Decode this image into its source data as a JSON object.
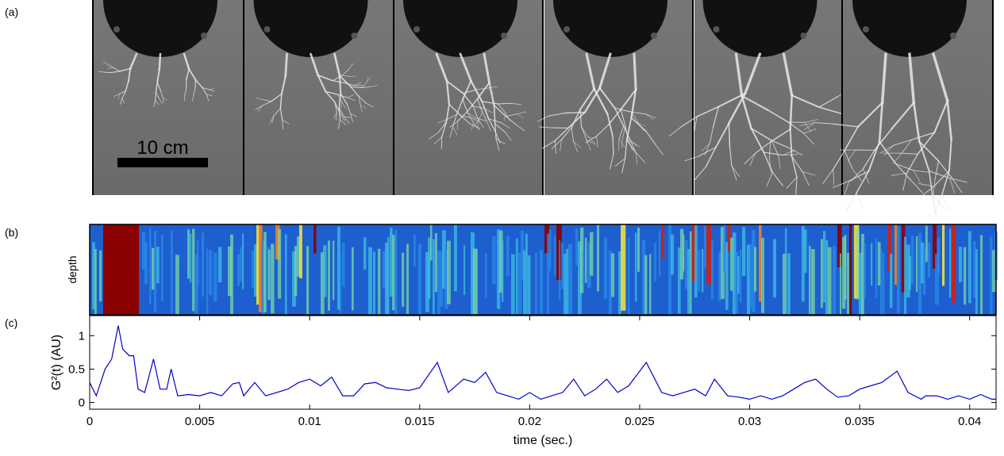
{
  "panel_labels": [
    "(a)",
    "(b)",
    "(c)"
  ],
  "scale_bar": "10 cm",
  "depth_label": "depth",
  "chart_data": {
    "type": "line",
    "xlabel": "time (sec.)",
    "ylabel": "G²(t) (AU)",
    "color": "#0000cc",
    "x": [
      0,
      0.0003,
      0.0007,
      0.001,
      0.0013,
      0.0015,
      0.0018,
      0.002,
      0.0022,
      0.0025,
      0.0029,
      0.0032,
      0.0035,
      0.0037,
      0.004,
      0.0045,
      0.005,
      0.0055,
      0.006,
      0.0065,
      0.0068,
      0.007,
      0.0075,
      0.008,
      0.0085,
      0.009,
      0.0095,
      0.01,
      0.0105,
      0.011,
      0.0115,
      0.012,
      0.0125,
      0.013,
      0.0135,
      0.014,
      0.0145,
      0.015,
      0.0158,
      0.0163,
      0.017,
      0.0175,
      0.018,
      0.0185,
      0.019,
      0.0195,
      0.02,
      0.0205,
      0.021,
      0.0215,
      0.022,
      0.0225,
      0.023,
      0.0235,
      0.024,
      0.0245,
      0.0253,
      0.026,
      0.0265,
      0.027,
      0.0275,
      0.028,
      0.0284,
      0.029,
      0.0295,
      0.03,
      0.0305,
      0.031,
      0.0315,
      0.032,
      0.0325,
      0.033,
      0.0335,
      0.034,
      0.0345,
      0.035,
      0.0355,
      0.036,
      0.0367,
      0.0372,
      0.0378,
      0.038,
      0.0385,
      0.039,
      0.0395,
      0.04,
      0.0405,
      0.041,
      0.0412
    ],
    "values": [
      0.3,
      0.1,
      0.5,
      0.65,
      1.15,
      0.8,
      0.7,
      0.7,
      0.2,
      0.15,
      0.65,
      0.2,
      0.2,
      0.5,
      0.1,
      0.12,
      0.1,
      0.15,
      0.1,
      0.28,
      0.3,
      0.1,
      0.3,
      0.1,
      0.15,
      0.2,
      0.3,
      0.35,
      0.25,
      0.38,
      0.1,
      0.1,
      0.28,
      0.3,
      0.22,
      0.2,
      0.18,
      0.22,
      0.6,
      0.15,
      0.35,
      0.3,
      0.45,
      0.15,
      0.1,
      0.05,
      0.15,
      0.05,
      0.1,
      0.15,
      0.35,
      0.1,
      0.2,
      0.35,
      0.15,
      0.25,
      0.6,
      0.15,
      0.1,
      0.15,
      0.2,
      0.1,
      0.35,
      0.1,
      0.08,
      0.05,
      0.1,
      0.05,
      0.1,
      0.2,
      0.3,
      0.35,
      0.2,
      0.08,
      0.1,
      0.2,
      0.25,
      0.3,
      0.47,
      0.15,
      0.05,
      0.1,
      0.1,
      0.05,
      0.1,
      0.05,
      0.12,
      0.05,
      0.05
    ],
    "xlim": [
      0,
      0.0412
    ],
    "ylim": [
      -0.1,
      1.3
    ],
    "xticks": [
      0,
      0.005,
      0.01,
      0.015,
      0.02,
      0.025,
      0.03,
      0.035,
      0.04
    ],
    "yticks": [
      0,
      0.5,
      1
    ],
    "grid": false
  }
}
